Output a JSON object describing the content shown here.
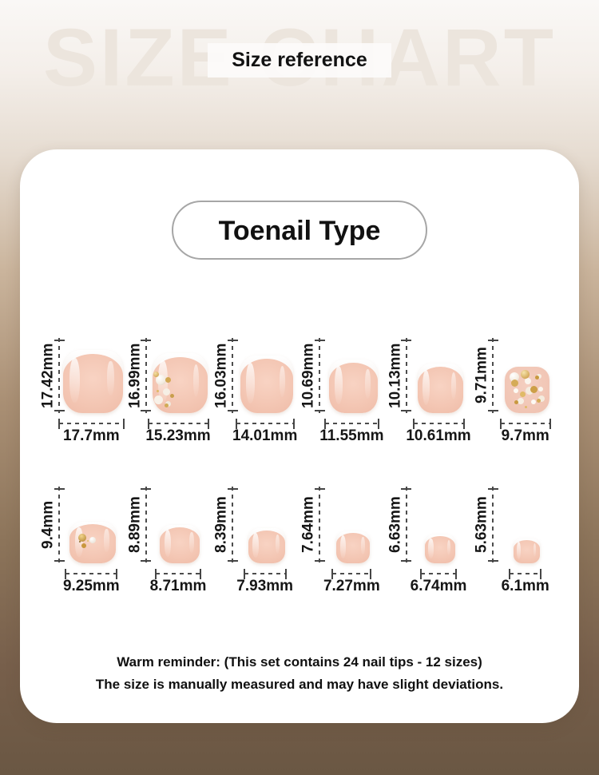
{
  "header": {
    "watermark": "SIZE CHART",
    "title": "Size reference"
  },
  "card": {
    "category_label": "Toenail Type",
    "reminder": {
      "line1": "Warm reminder: (This set contains 24 nail tips - 12 sizes)",
      "line2": "The size is manually measured and may have slight deviations."
    }
  },
  "chart_data": {
    "type": "table",
    "title": "Toenail Type size chart",
    "unit": "mm",
    "note": "24 nail tips - 12 sizes",
    "rows": [
      {
        "items": [
          {
            "height_label": "17.42mm",
            "width_label": "17.7mm",
            "height_mm": 17.42,
            "width_mm": 17.7,
            "decoration": "none"
          },
          {
            "height_label": "16.99mm",
            "width_label": "15.23mm",
            "height_mm": 16.99,
            "width_mm": 15.23,
            "decoration": "pearls"
          },
          {
            "height_label": "16.03mm",
            "width_label": "14.01mm",
            "height_mm": 16.03,
            "width_mm": 14.01,
            "decoration": "none"
          },
          {
            "height_label": "10.69mm",
            "width_label": "11.55mm",
            "height_mm": 10.69,
            "width_mm": 11.55,
            "decoration": "none"
          },
          {
            "height_label": "10.13mm",
            "width_label": "10.61mm",
            "height_mm": 10.13,
            "width_mm": 10.61,
            "decoration": "none"
          },
          {
            "height_label": "9.71mm",
            "width_label": "9.7mm",
            "height_mm": 9.71,
            "width_mm": 9.7,
            "decoration": "gems"
          }
        ]
      },
      {
        "items": [
          {
            "height_label": "9.4mm",
            "width_label": "9.25mm",
            "height_mm": 9.4,
            "width_mm": 9.25,
            "decoration": "charm"
          },
          {
            "height_label": "8.89mm",
            "width_label": "8.71mm",
            "height_mm": 8.89,
            "width_mm": 8.71,
            "decoration": "none"
          },
          {
            "height_label": "8.39mm",
            "width_label": "7.93mm",
            "height_mm": 8.39,
            "width_mm": 7.93,
            "decoration": "none"
          },
          {
            "height_label": "7.64mm",
            "width_label": "7.27mm",
            "height_mm": 7.64,
            "width_mm": 7.27,
            "decoration": "none"
          },
          {
            "height_label": "6.63mm",
            "width_label": "6.74mm",
            "height_mm": 6.63,
            "width_mm": 6.74,
            "decoration": "none"
          },
          {
            "height_label": "5.63mm",
            "width_label": "6.1mm",
            "height_mm": 5.63,
            "width_mm": 6.1,
            "decoration": "none"
          }
        ]
      }
    ]
  },
  "colors": {
    "background_top": "#faf8f6",
    "background_bottom": "#6a5743",
    "card": "#ffffff",
    "nail_pink": "#f3c5b2",
    "dimension_line": "#4d4d4d",
    "text": "#111111",
    "watermark": "#ece5dd",
    "gold": "#cfa14e",
    "pearl": "#f6efe6"
  }
}
